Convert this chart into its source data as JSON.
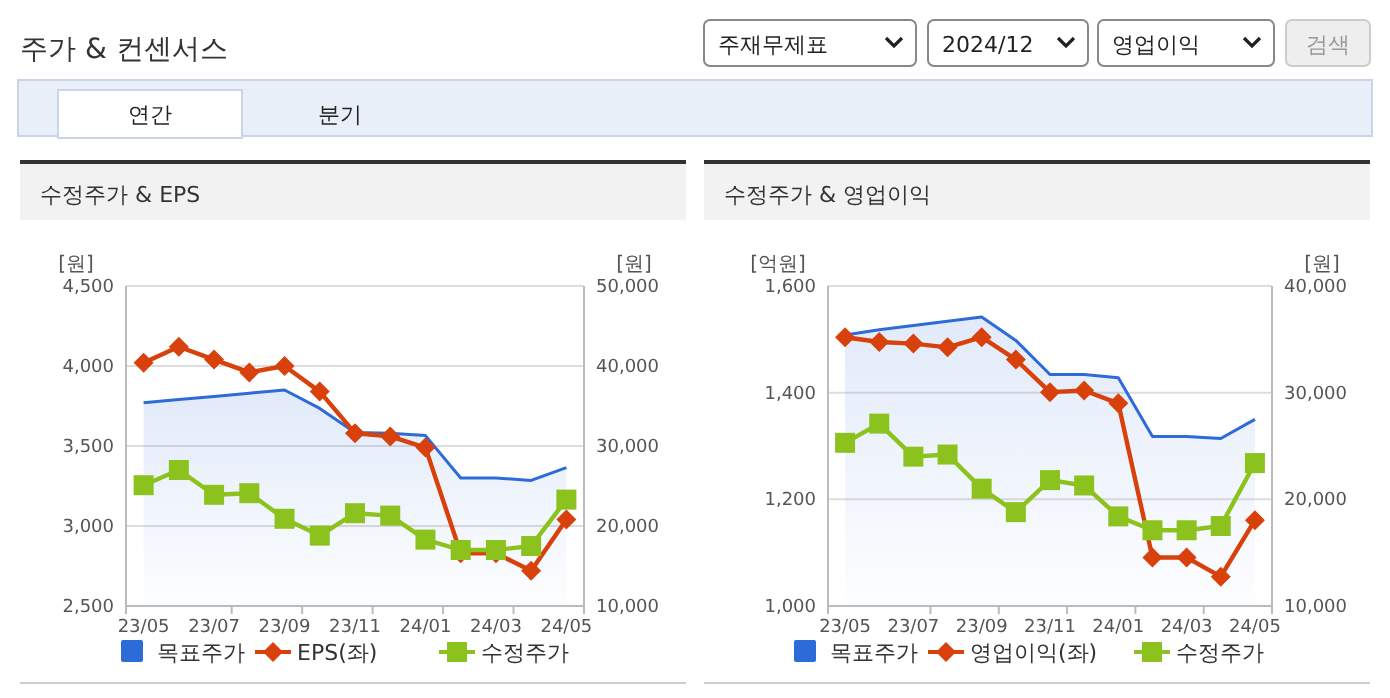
{
  "chart_data": [
    {
      "type": "other",
      "title": "주가 & 컨센서스",
      "annotations": [
        "주재무제표",
        "2024/12",
        "영업이익",
        "검색",
        "연간",
        "분기"
      ]
    },
    {
      "type": "line",
      "title": "수정주가 & EPS",
      "ylabel": "[원]",
      "y2label": "[원]",
      "categories": [
        "23/05",
        null,
        "23/07",
        null,
        "23/09",
        null,
        "23/11",
        null,
        "24/01",
        null,
        "24/03",
        null,
        "24/05"
      ],
      "ylim": [
        2500,
        4500
      ],
      "yticks": [
        {
          "value": 2500,
          "label": "2,500"
        },
        {
          "value": 3000,
          "label": "3,000"
        },
        {
          "value": 3500,
          "label": "3,500"
        },
        {
          "value": 4000,
          "label": "4,000"
        },
        {
          "value": 4500,
          "label": "4,500"
        }
      ],
      "y2lim": [
        10000,
        50000
      ],
      "y2ticks": [
        {
          "value": 10000,
          "label": "10,000"
        },
        {
          "value": 20000,
          "label": "20,000"
        },
        {
          "value": 30000,
          "label": "30,000"
        },
        {
          "value": 40000,
          "label": "40,000"
        },
        {
          "value": 50000,
          "label": "50,000"
        }
      ],
      "grid": "y",
      "legend": "bottom",
      "series": [
        {
          "name": "목표주가",
          "type": "area",
          "axis": "y2",
          "color": "#2d6bd8",
          "marker": "none",
          "values": [
            35400,
            35800,
            36200,
            36600,
            37000,
            34700,
            31700,
            31600,
            31300,
            26000,
            26000,
            25700,
            27300
          ]
        },
        {
          "name": "EPS(좌)",
          "type": "line",
          "color": "#d8400c",
          "marker": "diamond",
          "values": [
            4020,
            4120,
            4040,
            3960,
            4000,
            3840,
            3580,
            3560,
            3490,
            2830,
            2830,
            2720,
            3040
          ]
        },
        {
          "name": "수정주가",
          "type": "line",
          "axis": "y2",
          "color": "#8cc21e",
          "marker": "square",
          "values": [
            25100,
            27000,
            23900,
            24100,
            20900,
            18800,
            21600,
            21300,
            18300,
            17000,
            17000,
            17500,
            23300
          ]
        }
      ]
    },
    {
      "type": "line",
      "title": "수정주가 & 영업이익",
      "ylabel": "[억원]",
      "y2label": "[원]",
      "categories": [
        "23/05",
        null,
        "23/07",
        null,
        "23/09",
        null,
        "23/11",
        null,
        "24/01",
        null,
        "24/03",
        null,
        "24/05"
      ],
      "ylim": [
        1000,
        1600
      ],
      "yticks": [
        {
          "value": 1000,
          "label": "1,000"
        },
        {
          "value": 1200,
          "label": "1,200"
        },
        {
          "value": 1400,
          "label": "1,400"
        },
        {
          "value": 1600,
          "label": "1,600"
        }
      ],
      "y2lim": [
        10000,
        40000
      ],
      "y2ticks": [
        {
          "value": 10000,
          "label": "10,000"
        },
        {
          "value": 20000,
          "label": "20,000"
        },
        {
          "value": 30000,
          "label": "30,000"
        },
        {
          "value": 40000,
          "label": "40,000"
        }
      ],
      "grid": "y",
      "legend": "bottom",
      "series": [
        {
          "name": "목표주가",
          "type": "area",
          "axis": "y2",
          "color": "#2d6bd8",
          "marker": "none",
          "values": [
            35400,
            35900,
            36300,
            36700,
            37100,
            34900,
            31700,
            31700,
            31400,
            25900,
            25900,
            25700,
            27500
          ]
        },
        {
          "name": "영업이익(좌)",
          "type": "line",
          "color": "#d8400c",
          "marker": "diamond",
          "values": [
            1504,
            1495,
            1492,
            1485,
            1504,
            1462,
            1401,
            1404,
            1380,
            1091,
            1091,
            1055,
            1161
          ]
        },
        {
          "name": "수정주가",
          "type": "line",
          "axis": "y2",
          "color": "#8cc21e",
          "marker": "square",
          "values": [
            25300,
            27100,
            24000,
            24200,
            21000,
            18800,
            21800,
            21300,
            18400,
            17100,
            17100,
            17500,
            23400
          ]
        }
      ]
    }
  ]
}
